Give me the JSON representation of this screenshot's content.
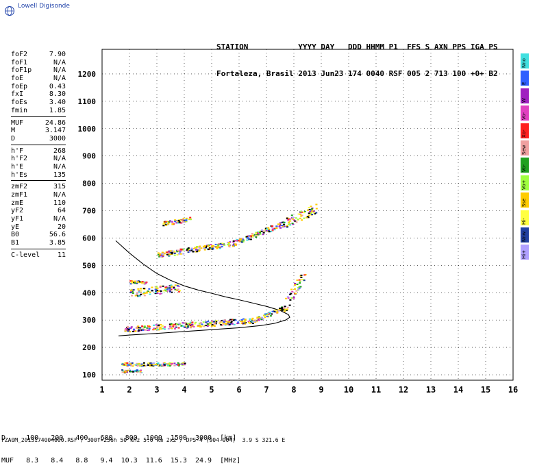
{
  "app": {
    "logo_text": "Lowell Digisonde"
  },
  "header": {
    "line1": "STATION           YYYY DAY   DDD HHMM P1  FFS S AXN PPS IGA PS",
    "line2": "Fortaleza, Brasil 2013 Jun23 174 0040 RSF 005 2 713 100 +0+ B2"
  },
  "params": {
    "group1": [
      {
        "name": "foF2",
        "value": "7.90"
      },
      {
        "name": "foF1",
        "value": "N/A"
      },
      {
        "name": "foF1p",
        "value": "N/A"
      },
      {
        "name": "foE",
        "value": "N/A"
      },
      {
        "name": "foEp",
        "value": "0.43"
      },
      {
        "name": "fxI",
        "value": "8.30"
      },
      {
        "name": "foEs",
        "value": "3.40"
      },
      {
        "name": "fmin",
        "value": "1.85"
      }
    ],
    "group2": [
      {
        "name": "MUF",
        "value": "24.86"
      },
      {
        "name": "M",
        "value": "3.147"
      },
      {
        "name": "D",
        "value": "3000"
      }
    ],
    "group3": [
      {
        "name": "h'F",
        "value": "268"
      },
      {
        "name": "h'F2",
        "value": "N/A"
      },
      {
        "name": "h'E",
        "value": "N/A"
      },
      {
        "name": "h'Es",
        "value": "135"
      }
    ],
    "group4": [
      {
        "name": "zmF2",
        "value": "315"
      },
      {
        "name": "zmF1",
        "value": "N/A"
      },
      {
        "name": "zmE",
        "value": "110"
      },
      {
        "name": "yF2",
        "value": "64"
      },
      {
        "name": "yF1",
        "value": "N/A"
      },
      {
        "name": "yE",
        "value": "20"
      },
      {
        "name": "B0",
        "value": "56.6"
      },
      {
        "name": "B1",
        "value": "3.85"
      }
    ],
    "group5": [
      {
        "name": "C-level",
        "value": "11"
      }
    ]
  },
  "legend": [
    {
      "label": "Nno",
      "color": "#40e0e0"
    },
    {
      "label": "E",
      "color": "#3060ff"
    },
    {
      "label": "W",
      "color": "#a020c0"
    },
    {
      "label": "Vo-",
      "color": "#e040c0"
    },
    {
      "label": "Xo-",
      "color": "#ff2020"
    },
    {
      "label": "Sew",
      "color": "#f0a0a0"
    },
    {
      "label": "Vo-",
      "color": "#20a020"
    },
    {
      "label": "Vo+",
      "color": "#a0ff40"
    },
    {
      "label": "Sse",
      "color": "#ffcc00"
    },
    {
      "label": "Hi-",
      "color": "#ffff40"
    },
    {
      "label": "Nnw",
      "color": "#2040a0"
    },
    {
      "label": "Hi+",
      "color": "#b0a0ff"
    }
  ],
  "footer": {
    "row1": "D     100   200   400   600   800  1000  1500  3000  [km]",
    "row2": "MUF   8.3   8.4   8.8   9.4  10.3  11.6  15.3  24.9  [MHz]",
    "file": "FZA0M_2013174004000.RSF / 300f×256h 50 kHz 5.0 km 2x2 / DPS-4 (904-904)  3.9 S 321.6 E"
  },
  "chart_data": {
    "type": "scatter",
    "xlim": [
      1,
      16
    ],
    "ylim": [
      80,
      1290
    ],
    "xticks": [
      1,
      2,
      3,
      4,
      5,
      6,
      7,
      8,
      9,
      10,
      11,
      12,
      13,
      14,
      15,
      16
    ],
    "yticks": [
      100,
      200,
      300,
      400,
      500,
      600,
      700,
      800,
      900,
      1000,
      1100,
      1200
    ],
    "grid": true,
    "profile": [
      [
        1.5,
        590
      ],
      [
        2.0,
        545
      ],
      [
        2.5,
        505
      ],
      [
        3.0,
        470
      ],
      [
        3.5,
        445
      ],
      [
        4.0,
        425
      ],
      [
        4.5,
        410
      ],
      [
        5.0,
        398
      ],
      [
        5.5,
        385
      ],
      [
        6.0,
        374
      ],
      [
        6.5,
        362
      ],
      [
        7.0,
        350
      ],
      [
        7.5,
        335
      ],
      [
        7.8,
        320
      ],
      [
        7.85,
        310
      ],
      [
        7.7,
        300
      ],
      [
        7.3,
        288
      ],
      [
        6.8,
        280
      ],
      [
        6.0,
        272
      ],
      [
        5.0,
        265
      ],
      [
        4.0,
        258
      ],
      [
        3.0,
        251
      ],
      [
        2.0,
        245
      ],
      [
        1.6,
        242
      ]
    ],
    "traces": [
      {
        "x0": 1.7,
        "x1": 4.0,
        "y0": 140,
        "y1": 140,
        "jitter": 6
      },
      {
        "x0": 1.7,
        "x1": 2.4,
        "y0": 115,
        "y1": 115,
        "jitter": 5
      },
      {
        "x0": 1.8,
        "x1": 6.5,
        "y0": 268,
        "y1": 300,
        "jitter": 10
      },
      {
        "x0": 6.5,
        "x1": 7.6,
        "y0": 300,
        "y1": 345,
        "jitter": 8
      },
      {
        "x0": 7.6,
        "x1": 8.4,
        "y0": 345,
        "y1": 480,
        "jitter": 25
      },
      {
        "x0": 2.0,
        "x1": 3.8,
        "y0": 400,
        "y1": 420,
        "jitter": 14
      },
      {
        "x0": 2.0,
        "x1": 2.6,
        "y0": 440,
        "y1": 440,
        "jitter": 6
      },
      {
        "x0": 3.0,
        "x1": 5.7,
        "y0": 540,
        "y1": 580,
        "jitter": 10
      },
      {
        "x0": 5.7,
        "x1": 7.5,
        "y0": 580,
        "y1": 650,
        "jitter": 10
      },
      {
        "x0": 7.5,
        "x1": 8.8,
        "y0": 650,
        "y1": 710,
        "jitter": 18
      },
      {
        "x0": 3.2,
        "x1": 4.2,
        "y0": 655,
        "y1": 670,
        "jitter": 8
      }
    ]
  }
}
